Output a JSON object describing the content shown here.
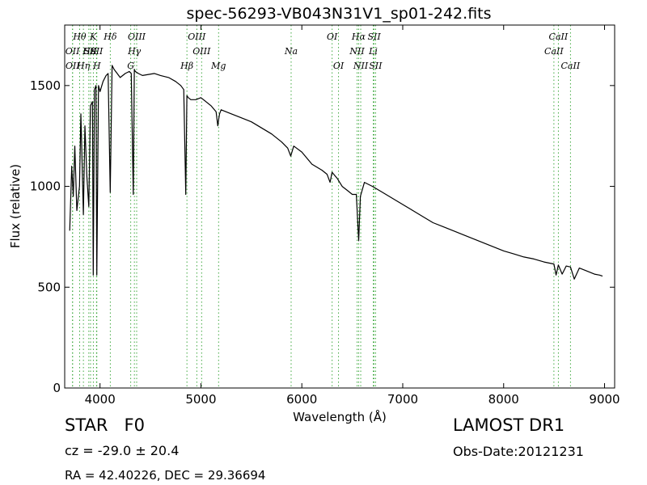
{
  "chart_data": {
    "type": "line",
    "title": "spec-56293-VB043N31V1_sp01-242.fits",
    "xlabel": "Wavelength (Å)",
    "ylabel": "Flux (relative)",
    "xlim": [
      3650,
      9100
    ],
    "ylim": [
      0,
      1800
    ],
    "xticks": [
      4000,
      5000,
      6000,
      7000,
      8000,
      9000
    ],
    "yticks": [
      0,
      500,
      1000,
      1500
    ],
    "grid": false,
    "series": [
      {
        "x": [
          3700,
          3720,
          3735,
          3750,
          3770,
          3797,
          3810,
          3835,
          3850,
          3870,
          3889,
          3905,
          3925,
          3933,
          3945,
          3960,
          3968,
          3985,
          4000,
          4030,
          4060,
          4080,
          4101,
          4120,
          4140,
          4170,
          4200,
          4250,
          4290,
          4310,
          4330,
          4340,
          4350,
          4380,
          4420,
          4480,
          4540,
          4600,
          4680,
          4750,
          4800,
          4830,
          4850,
          4861,
          4875,
          4900,
          4950,
          5000,
          5050,
          5100,
          5150,
          5167,
          5175,
          5185,
          5200,
          5250,
          5300,
          5400,
          5500,
          5600,
          5700,
          5800,
          5860,
          5890,
          5920,
          6000,
          6100,
          6200,
          6250,
          6280,
          6300,
          6350,
          6400,
          6450,
          6500,
          6540,
          6563,
          6580,
          6620,
          6700,
          6800,
          6900,
          7000,
          7100,
          7200,
          7300,
          7400,
          7500,
          7600,
          7700,
          7800,
          7900,
          8000,
          8100,
          8200,
          8300,
          8400,
          8498,
          8520,
          8542,
          8580,
          8620,
          8662,
          8700,
          8750,
          8800,
          8850,
          8900,
          8950,
          8980
        ],
        "values": [
          780,
          1100,
          950,
          1200,
          880,
          1000,
          1360,
          860,
          1300,
          1050,
          900,
          1400,
          1420,
          560,
          1480,
          1500,
          560,
          1500,
          1470,
          1520,
          1550,
          1560,
          970,
          1600,
          1580,
          1560,
          1540,
          1560,
          1570,
          1560,
          960,
          1580,
          1570,
          1560,
          1550,
          1555,
          1560,
          1550,
          1540,
          1520,
          1500,
          1480,
          960,
          1450,
          1440,
          1430,
          1430,
          1440,
          1420,
          1400,
          1370,
          1300,
          1330,
          1360,
          1380,
          1370,
          1360,
          1340,
          1320,
          1290,
          1260,
          1220,
          1190,
          1150,
          1200,
          1170,
          1110,
          1080,
          1060,
          1020,
          1070,
          1040,
          1000,
          980,
          960,
          960,
          730,
          950,
          1020,
          1000,
          970,
          940,
          910,
          880,
          850,
          820,
          800,
          780,
          760,
          740,
          720,
          700,
          680,
          665,
          650,
          640,
          625,
          615,
          560,
          610,
          565,
          605,
          600,
          540,
          595,
          585,
          575,
          565,
          560,
          555
        ]
      }
    ],
    "lines": [
      {
        "name": "OII",
        "wl": 3727.0,
        "row": 1
      },
      {
        "name": "OII",
        "wl": 3729.0,
        "row": 2
      },
      {
        "name": "Hθ",
        "wl": 3797.9,
        "row": 0
      },
      {
        "name": "Hη",
        "wl": 3835.4,
        "row": 2
      },
      {
        "name": "Hε",
        "wl": 3889.0,
        "row": 1
      },
      {
        "name": "SII",
        "wl": 3906.0,
        "row": 1
      },
      {
        "name": "K",
        "wl": 3933.7,
        "row": 0
      },
      {
        "name": "H",
        "wl": 3968.5,
        "row": 2
      },
      {
        "name": "SII",
        "wl": 3965.0,
        "row": 1
      },
      {
        "name": "Hδ",
        "wl": 4101.7,
        "row": 0
      },
      {
        "name": "OIII",
        "wl": 4363.2,
        "row": 0
      },
      {
        "name": "Hγ",
        "wl": 4340.5,
        "row": 1
      },
      {
        "name": "G",
        "wl": 4304.4,
        "row": 2
      },
      {
        "name": "OIII",
        "wl": 4958.9,
        "row": 0
      },
      {
        "name": "OIII",
        "wl": 5006.8,
        "row": 1
      },
      {
        "name": "Hβ",
        "wl": 4861.3,
        "row": 2
      },
      {
        "name": "Mg",
        "wl": 5175.0,
        "row": 2
      },
      {
        "name": "Na",
        "wl": 5894.0,
        "row": 1
      },
      {
        "name": "OI",
        "wl": 6300.3,
        "row": 0
      },
      {
        "name": "OI",
        "wl": 6363.8,
        "row": 2
      },
      {
        "name": "Hα",
        "wl": 6562.8,
        "row": 0
      },
      {
        "name": "NII",
        "wl": 6548.1,
        "row": 1
      },
      {
        "name": "NII",
        "wl": 6583.6,
        "row": 2
      },
      {
        "name": "SII",
        "wl": 6716.4,
        "row": 0
      },
      {
        "name": "Li",
        "wl": 6707.8,
        "row": 1
      },
      {
        "name": "SII",
        "wl": 6730.8,
        "row": 2
      },
      {
        "name": "CaII",
        "wl": 8498.0,
        "row": 1
      },
      {
        "name": "CaII",
        "wl": 8542.1,
        "row": 0
      },
      {
        "name": "CaII",
        "wl": 8662.1,
        "row": 2
      }
    ],
    "colors": {
      "spectrum": "#000000",
      "lines": "#2ca02c"
    }
  },
  "info": {
    "star": "STAR   F0",
    "cz": "cz = -29.0 ± 20.4",
    "radec": "RA = 42.40226, DEC = 29.36694",
    "survey": "LAMOST DR1",
    "obsdate": "Obs-Date:20121231"
  }
}
